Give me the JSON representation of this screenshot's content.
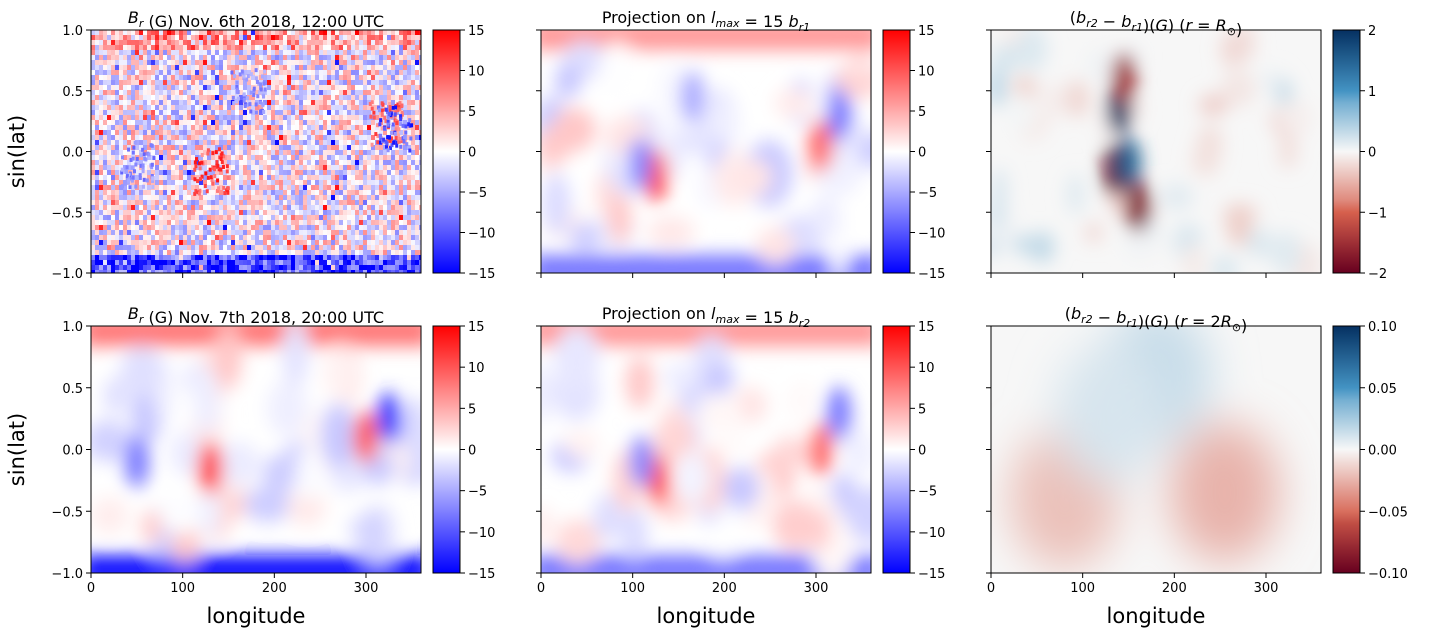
{
  "colors": {
    "bwr_low": "#0000ff",
    "bwr_mid": "#ffffff",
    "bwr_high": "#ff0000",
    "rdbu_low": "#67001f",
    "rdbu_mid": "#f7f7f7",
    "rdbu_high": "#053061"
  },
  "chart_data": [
    {
      "id": "p00",
      "type": "heatmap",
      "title": "B_r (G) Nov. 6th 2018, 12:00 UTC",
      "title_parts": {
        "sym": "B",
        "sub": "r",
        "rest": " (G) Nov. 6th 2018, 12:00 UTC"
      },
      "xlabel": "",
      "ylabel": "sin(lat)",
      "xlim": [
        0,
        360
      ],
      "ylim": [
        -1.0,
        1.0
      ],
      "xticks": [
        0,
        100,
        200,
        300
      ],
      "xtick_labels_shown": false,
      "yticks": [
        "1.0",
        "0.5",
        "0.0",
        "−0.5",
        "−1.0"
      ],
      "colormap": "bwr",
      "clim": [
        -15,
        15
      ],
      "colorbar_ticks": [
        "15",
        "10",
        "5",
        "0",
        "−5",
        "−10",
        "−15"
      ],
      "features": [
        {
          "lon": 130,
          "sinlat": -0.15,
          "value": 12
        },
        {
          "lon": 320,
          "sinlat": 0.25,
          "value": 10
        },
        {
          "lon": 330,
          "sinlat": 0.2,
          "value": -12
        },
        {
          "lon": 50,
          "sinlat": -0.1,
          "value": -8
        },
        {
          "lon": 170,
          "sinlat": 0.5,
          "value": -8
        }
      ],
      "polar_bands": {
        "north": 8,
        "south": -14
      }
    },
    {
      "id": "p01",
      "type": "heatmap",
      "title": "Projection on l_max = 15 b_r1",
      "title_parts": {
        "pre": "Projection on ",
        "sym": "l",
        "sub": "max",
        "eq": " = 15 ",
        "sym2": "b",
        "sub2": "r1"
      },
      "xlabel": "",
      "ylabel": "",
      "xlim": [
        0,
        360
      ],
      "ylim": [
        -1.0,
        1.0
      ],
      "xticks": [
        0,
        100,
        200,
        300
      ],
      "xtick_labels_shown": false,
      "colormap": "bwr",
      "clim": [
        -15,
        15
      ],
      "colorbar_ticks": [
        "15",
        "10",
        "5",
        "0",
        "−5",
        "−10",
        "−15"
      ],
      "features": [
        {
          "lon": 125,
          "sinlat": -0.2,
          "value": 11
        },
        {
          "lon": 108,
          "sinlat": -0.1,
          "value": -7
        },
        {
          "lon": 305,
          "sinlat": 0.05,
          "value": 9
        },
        {
          "lon": 325,
          "sinlat": 0.3,
          "value": -8
        },
        {
          "lon": 165,
          "sinlat": 0.45,
          "value": -5
        }
      ],
      "polar_bands": {
        "north": 6,
        "south": -8
      }
    },
    {
      "id": "p02",
      "type": "heatmap",
      "title": "(b_r2 − b_r1)(G) (r = R_⊙)",
      "title_parts": {
        "open": "(",
        "s1": "b",
        "u1": "r2",
        "minus": " − ",
        "s2": "b",
        "u2": "r1",
        "mid": ")(",
        "g": "G",
        "close1": ") (",
        "r": "r",
        "eq": " = ",
        "R": "R",
        "u3": "⊙",
        "close2": ")"
      },
      "xlabel": "",
      "ylabel": "",
      "xlim": [
        0,
        360
      ],
      "ylim": [
        -1.0,
        1.0
      ],
      "xticks": [
        0,
        100,
        200,
        300
      ],
      "xtick_labels_shown": false,
      "colormap": "RdBu",
      "clim": [
        -2,
        2
      ],
      "colorbar_ticks": [
        "2",
        "1",
        "0",
        "−1",
        "−2"
      ],
      "features": [
        {
          "lon": 140,
          "sinlat": 0.35,
          "value": 2
        },
        {
          "lon": 145,
          "sinlat": 0.6,
          "value": -1.5
        },
        {
          "lon": 135,
          "sinlat": -0.15,
          "value": -2
        },
        {
          "lon": 150,
          "sinlat": -0.1,
          "value": 1.5
        },
        {
          "lon": 160,
          "sinlat": -0.45,
          "value": -1.8
        }
      ]
    },
    {
      "id": "p10",
      "type": "heatmap",
      "title": "B_r (G) Nov. 7th 2018, 20:00 UTC",
      "title_parts": {
        "sym": "B",
        "sub": "r",
        "rest": " (G) Nov. 7th 2018, 20:00 UTC"
      },
      "xlabel": "longitude",
      "ylabel": "sin(lat)",
      "xlim": [
        0,
        360
      ],
      "ylim": [
        -1.0,
        1.0
      ],
      "xticks": [
        0,
        100,
        200,
        300
      ],
      "xtick_labels_shown": true,
      "yticks": [
        "1.0",
        "0.5",
        "0.0",
        "−0.5",
        "−1.0"
      ],
      "colormap": "bwr",
      "clim": [
        -15,
        15
      ],
      "colorbar_ticks": [
        "15",
        "10",
        "5",
        "0",
        "−5",
        "−10",
        "−15"
      ],
      "features": [
        {
          "lon": 130,
          "sinlat": -0.15,
          "value": 12
        },
        {
          "lon": 300,
          "sinlat": 0.1,
          "value": 10
        },
        {
          "lon": 325,
          "sinlat": 0.25,
          "value": -12
        },
        {
          "lon": 50,
          "sinlat": -0.1,
          "value": -8
        }
      ],
      "polar_bands": {
        "north": 8,
        "south": -14
      }
    },
    {
      "id": "p11",
      "type": "heatmap",
      "title": "Projection on l_max = 15 b_r2",
      "title_parts": {
        "pre": "Projection on ",
        "sym": "l",
        "sub": "max",
        "eq": " = 15 ",
        "sym2": "b",
        "sub2": "r2"
      },
      "xlabel": "longitude",
      "ylabel": "",
      "xlim": [
        0,
        360
      ],
      "ylim": [
        -1.0,
        1.0
      ],
      "xticks": [
        0,
        100,
        200,
        300
      ],
      "xtick_labels_shown": true,
      "colormap": "bwr",
      "clim": [
        -15,
        15
      ],
      "colorbar_ticks": [
        "15",
        "10",
        "5",
        "0",
        "−5",
        "−10",
        "−15"
      ],
      "features": [
        {
          "lon": 128,
          "sinlat": -0.25,
          "value": 10
        },
        {
          "lon": 110,
          "sinlat": -0.1,
          "value": -7
        },
        {
          "lon": 305,
          "sinlat": 0.0,
          "value": 9
        },
        {
          "lon": 325,
          "sinlat": 0.3,
          "value": -8
        }
      ],
      "polar_bands": {
        "north": 6,
        "south": -8
      }
    },
    {
      "id": "p12",
      "type": "heatmap",
      "title": "(b_r2 − b_r1)(G) (r = 2R_⊙)",
      "title_parts": {
        "open": "(",
        "s1": "b",
        "u1": "r2",
        "minus": " − ",
        "s2": "b",
        "u2": "r1",
        "mid": ")(",
        "g": "G",
        "close1": ") (",
        "r": "r",
        "eq": " = 2",
        "R": "R",
        "u3": "⊙",
        "close2": ")"
      },
      "xlabel": "longitude",
      "ylabel": "",
      "xlim": [
        0,
        360
      ],
      "ylim": [
        -1.0,
        1.0
      ],
      "xticks": [
        0,
        100,
        200,
        300
      ],
      "xtick_labels_shown": true,
      "colormap": "RdBu",
      "clim": [
        -0.1,
        0.1
      ],
      "colorbar_ticks": [
        "0.10",
        "0.05",
        "0.00",
        "−0.05",
        "−0.10"
      ],
      "features": [
        {
          "lon": 80,
          "sinlat": -0.4,
          "value": -0.02
        },
        {
          "lon": 255,
          "sinlat": -0.35,
          "value": -0.025
        },
        {
          "lon": 180,
          "sinlat": 0.6,
          "value": 0.015
        },
        {
          "lon": 130,
          "sinlat": 0.3,
          "value": 0.01
        }
      ]
    }
  ]
}
